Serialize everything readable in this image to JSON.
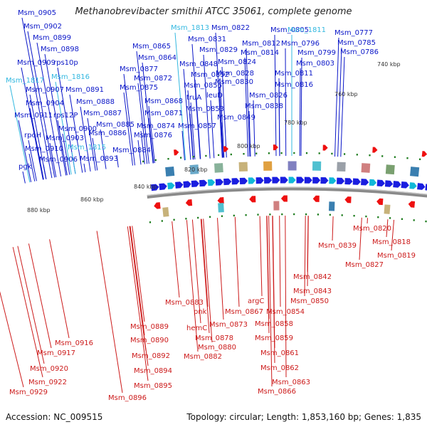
{
  "header": {
    "title": "Methanobrevibacter smithii ATCC 35061, complete genome"
  },
  "footer": {
    "accession": "Accession: NC_009515",
    "summary": "Topology: circular; Length: 1,853,160 bp; Genes: 1,835"
  },
  "colors": {
    "forward_label": "#0a16c8",
    "rna_label": "#33b8e0",
    "reverse_label": "#cc1a1a",
    "backbone": "#8a8a8a",
    "tick": "#1a7a1a",
    "forward_feature": "#1a1ee0",
    "reverse_feature": "#ee1010"
  },
  "scale_labels": [
    {
      "text": "740 kbp"
    },
    {
      "text": "760 kbp"
    },
    {
      "text": "780 kbp"
    },
    {
      "text": "800 kbp"
    },
    {
      "text": "820 kbp"
    },
    {
      "text": "840 kbp"
    },
    {
      "text": "860 kbp"
    },
    {
      "text": "880 kbp"
    }
  ],
  "forward_labels": [
    {
      "text": "Msm_0905",
      "type": "cds"
    },
    {
      "text": "Msm_0902",
      "type": "cds"
    },
    {
      "text": "Msm_0899",
      "type": "cds"
    },
    {
      "text": "Msm_0898",
      "type": "cds"
    },
    {
      "text": "Msm_0909",
      "type": "cds"
    },
    {
      "text": "rps10p",
      "type": "cds"
    },
    {
      "text": "Msm_1817",
      "type": "rna"
    },
    {
      "text": "Msm_1816",
      "type": "rna"
    },
    {
      "text": "Msm_0907",
      "type": "cds"
    },
    {
      "text": "Msm_0891",
      "type": "cds"
    },
    {
      "text": "Msm_0904",
      "type": "cds"
    },
    {
      "text": "Msm_0888",
      "type": "cds"
    },
    {
      "text": "Msm_0911",
      "type": "cds"
    },
    {
      "text": "rps12P",
      "type": "cds"
    },
    {
      "text": "Msm_0887",
      "type": "cds"
    },
    {
      "text": "Msm_0900",
      "type": "cds"
    },
    {
      "text": "Msm_0885",
      "type": "cds"
    },
    {
      "text": "rpoH",
      "type": "cds"
    },
    {
      "text": "Msm_0903",
      "type": "cds"
    },
    {
      "text": "Msm_0886",
      "type": "cds"
    },
    {
      "text": "Msm_0910",
      "type": "cds"
    },
    {
      "text": "Msm_1815",
      "type": "rna"
    },
    {
      "text": "Msm_0906",
      "type": "cds"
    },
    {
      "text": "Msm_0893",
      "type": "cds"
    },
    {
      "text": "pgk",
      "type": "cds"
    },
    {
      "text": "Msm_0884",
      "type": "cds"
    },
    {
      "text": "Msm_0865",
      "type": "cds"
    },
    {
      "text": "Msm_0864",
      "type": "cds"
    },
    {
      "text": "Msm_0877",
      "type": "cds"
    },
    {
      "text": "Msm_0872",
      "type": "cds"
    },
    {
      "text": "Msm_0875",
      "type": "cds"
    },
    {
      "text": "Msm_0868",
      "type": "cds"
    },
    {
      "text": "Msm_0871",
      "type": "cds"
    },
    {
      "text": "Msm_0874",
      "type": "cds"
    },
    {
      "text": "Msm_0876",
      "type": "cds"
    },
    {
      "text": "Msm_1813",
      "type": "rna"
    },
    {
      "text": "Msm_0831",
      "type": "cds"
    },
    {
      "text": "Msm_0829",
      "type": "cds"
    },
    {
      "text": "Msm_0848",
      "type": "cds"
    },
    {
      "text": "Msm_0852",
      "type": "cds"
    },
    {
      "text": "Msm_0856",
      "type": "cds"
    },
    {
      "text": "truA",
      "type": "cds"
    },
    {
      "text": "Msm_0853",
      "type": "cds"
    },
    {
      "text": "Msm_0857",
      "type": "cds"
    },
    {
      "text": "Msm_0822",
      "type": "cds"
    },
    {
      "text": "Msm_0824",
      "type": "cds"
    },
    {
      "text": "Msm_0828",
      "type": "cds"
    },
    {
      "text": "Msm_0830",
      "type": "cds"
    },
    {
      "text": "leuD",
      "type": "cds"
    },
    {
      "text": "Msm_0849",
      "type": "cds"
    },
    {
      "text": "Msm_0812",
      "type": "cds"
    },
    {
      "text": "Msm_0814",
      "type": "cds"
    },
    {
      "text": "Msm_0838",
      "type": "cds"
    },
    {
      "text": "Msm_0826",
      "type": "cds"
    },
    {
      "text": "Msm_0805",
      "type": "cds"
    },
    {
      "text": "Msm_1811",
      "type": "rna"
    },
    {
      "text": "Msm_0796",
      "type": "cds"
    },
    {
      "text": "Msm_0799",
      "type": "cds"
    },
    {
      "text": "Msm_0803",
      "type": "cds"
    },
    {
      "text": "Msm_0811",
      "type": "cds"
    },
    {
      "text": "Msm_0816",
      "type": "cds"
    },
    {
      "text": "Msm_0777",
      "type": "cds"
    },
    {
      "text": "Msm_0785",
      "type": "cds"
    },
    {
      "text": "Msm_0786",
      "type": "cds"
    }
  ],
  "reverse_labels": [
    {
      "text": "Msm_0820"
    },
    {
      "text": "Msm_0818"
    },
    {
      "text": "Msm_0819"
    },
    {
      "text": "Msm_0839"
    },
    {
      "text": "Msm_0827"
    },
    {
      "text": "Msm_0842"
    },
    {
      "text": "Msm_0843"
    },
    {
      "text": "Msm_0850"
    },
    {
      "text": "Msm_0854"
    },
    {
      "text": "argC"
    },
    {
      "text": "Msm_0858"
    },
    {
      "text": "Msm_0859"
    },
    {
      "text": "Msm_0861"
    },
    {
      "text": "Msm_0862"
    },
    {
      "text": "Msm_0863"
    },
    {
      "text": "Msm_0866"
    },
    {
      "text": "Msm_0867"
    },
    {
      "text": "Msm_0873"
    },
    {
      "text": "Msm_0883"
    },
    {
      "text": "pnk"
    },
    {
      "text": "hemC"
    },
    {
      "text": "Msm_0878"
    },
    {
      "text": "Msm_0880"
    },
    {
      "text": "Msm_0882"
    },
    {
      "text": "Msm_0889"
    },
    {
      "text": "Msm_0890"
    },
    {
      "text": "Msm_0892"
    },
    {
      "text": "Msm_0894"
    },
    {
      "text": "Msm_0895"
    },
    {
      "text": "Msm_0896"
    },
    {
      "text": "Msm_0916"
    },
    {
      "text": "Msm_0917"
    },
    {
      "text": "Msm_0920"
    },
    {
      "text": "Msm_0922"
    },
    {
      "text": "Msm_0929"
    }
  ]
}
